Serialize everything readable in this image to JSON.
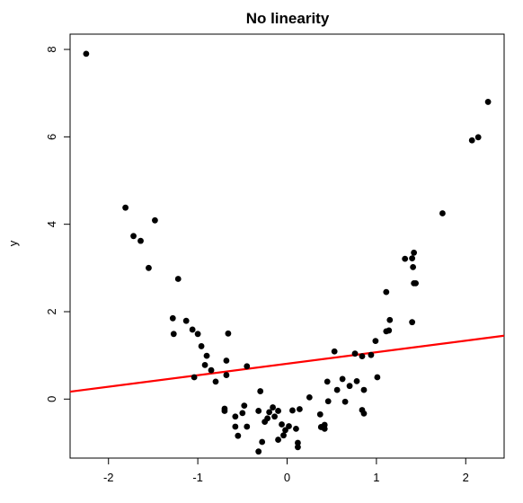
{
  "chart_data": {
    "type": "scatter",
    "title": "No linearity",
    "xlabel": "",
    "ylabel": "y",
    "xlim": [
      -2.43,
      2.43
    ],
    "ylim": [
      -1.35,
      8.35
    ],
    "x_ticks": [
      -2,
      -1,
      0,
      1,
      2
    ],
    "y_ticks": [
      0,
      2,
      4,
      6,
      8
    ],
    "grid": false,
    "legend": false,
    "colors": {
      "points": "#000000",
      "fit_line": "#ff0000"
    },
    "points": [
      {
        "x": -2.25,
        "y": 7.9
      },
      {
        "x": -1.81,
        "y": 4.38
      },
      {
        "x": -1.72,
        "y": 3.73
      },
      {
        "x": -1.64,
        "y": 3.62
      },
      {
        "x": -1.55,
        "y": 3.0
      },
      {
        "x": -1.48,
        "y": 4.09
      },
      {
        "x": -1.22,
        "y": 2.75
      },
      {
        "x": -1.28,
        "y": 1.85
      },
      {
        "x": -1.27,
        "y": 1.49
      },
      {
        "x": -1.13,
        "y": 1.79
      },
      {
        "x": -1.06,
        "y": 1.59
      },
      {
        "x": -1.0,
        "y": 1.49
      },
      {
        "x": -0.96,
        "y": 1.21
      },
      {
        "x": -0.9,
        "y": 0.99
      },
      {
        "x": -0.85,
        "y": 0.66
      },
      {
        "x": -0.92,
        "y": 0.78
      },
      {
        "x": -1.04,
        "y": 0.5
      },
      {
        "x": -0.8,
        "y": 0.4
      },
      {
        "x": -0.66,
        "y": 1.5
      },
      {
        "x": -0.68,
        "y": 0.88
      },
      {
        "x": -0.68,
        "y": 0.55
      },
      {
        "x": -0.45,
        "y": 0.75
      },
      {
        "x": -0.7,
        "y": -0.22
      },
      {
        "x": -0.7,
        "y": -0.27
      },
      {
        "x": -0.58,
        "y": -0.4
      },
      {
        "x": -0.48,
        "y": -0.15
      },
      {
        "x": -0.5,
        "y": -0.32
      },
      {
        "x": -0.58,
        "y": -0.63
      },
      {
        "x": -0.55,
        "y": -0.84
      },
      {
        "x": -0.45,
        "y": -0.63
      },
      {
        "x": -0.32,
        "y": -0.27
      },
      {
        "x": -0.3,
        "y": 0.18
      },
      {
        "x": -0.25,
        "y": -0.52
      },
      {
        "x": -0.2,
        "y": -0.3
      },
      {
        "x": -0.16,
        "y": -0.19
      },
      {
        "x": -0.22,
        "y": -0.44
      },
      {
        "x": -0.14,
        "y": -0.4
      },
      {
        "x": -0.1,
        "y": -0.27
      },
      {
        "x": -0.06,
        "y": -0.58
      },
      {
        "x": -0.02,
        "y": -0.71
      },
      {
        "x": 0.02,
        "y": -0.62
      },
      {
        "x": 0.06,
        "y": -0.26
      },
      {
        "x": 0.1,
        "y": -0.68
      },
      {
        "x": -0.04,
        "y": -0.83
      },
      {
        "x": -0.1,
        "y": -0.93
      },
      {
        "x": -0.28,
        "y": -0.98
      },
      {
        "x": -0.32,
        "y": -1.2
      },
      {
        "x": 0.14,
        "y": -0.23
      },
      {
        "x": 0.12,
        "y": -1.0
      },
      {
        "x": 0.12,
        "y": -1.1
      },
      {
        "x": 0.25,
        "y": 0.04
      },
      {
        "x": 0.37,
        "y": -0.35
      },
      {
        "x": 0.38,
        "y": -0.64
      },
      {
        "x": 0.42,
        "y": -0.59
      },
      {
        "x": 0.42,
        "y": -0.68
      },
      {
        "x": 0.45,
        "y": 0.4
      },
      {
        "x": 0.46,
        "y": -0.05
      },
      {
        "x": 0.53,
        "y": 1.09
      },
      {
        "x": 0.56,
        "y": 0.21
      },
      {
        "x": 0.62,
        "y": 0.46
      },
      {
        "x": 0.65,
        "y": -0.06
      },
      {
        "x": 0.7,
        "y": 0.3
      },
      {
        "x": 0.76,
        "y": 1.04
      },
      {
        "x": 0.78,
        "y": 0.41
      },
      {
        "x": 0.84,
        "y": 0.98
      },
      {
        "x": 0.86,
        "y": 0.21
      },
      {
        "x": 0.84,
        "y": -0.25
      },
      {
        "x": 0.86,
        "y": -0.33
      },
      {
        "x": 0.94,
        "y": 1.01
      },
      {
        "x": 0.99,
        "y": 1.33
      },
      {
        "x": 1.01,
        "y": 0.5
      },
      {
        "x": 1.11,
        "y": 1.55
      },
      {
        "x": 1.14,
        "y": 1.57
      },
      {
        "x": 1.15,
        "y": 1.81
      },
      {
        "x": 1.11,
        "y": 2.45
      },
      {
        "x": 1.32,
        "y": 3.21
      },
      {
        "x": 1.4,
        "y": 3.22
      },
      {
        "x": 1.42,
        "y": 3.35
      },
      {
        "x": 1.41,
        "y": 3.02
      },
      {
        "x": 1.42,
        "y": 2.65
      },
      {
        "x": 1.44,
        "y": 2.65
      },
      {
        "x": 1.4,
        "y": 1.76
      },
      {
        "x": 1.74,
        "y": 4.25
      },
      {
        "x": 2.07,
        "y": 5.92
      },
      {
        "x": 2.14,
        "y": 5.99
      },
      {
        "x": 2.25,
        "y": 6.8
      }
    ],
    "fit_line": {
      "x": [
        -2.43,
        2.43
      ],
      "y": [
        0.17,
        1.45
      ]
    }
  }
}
